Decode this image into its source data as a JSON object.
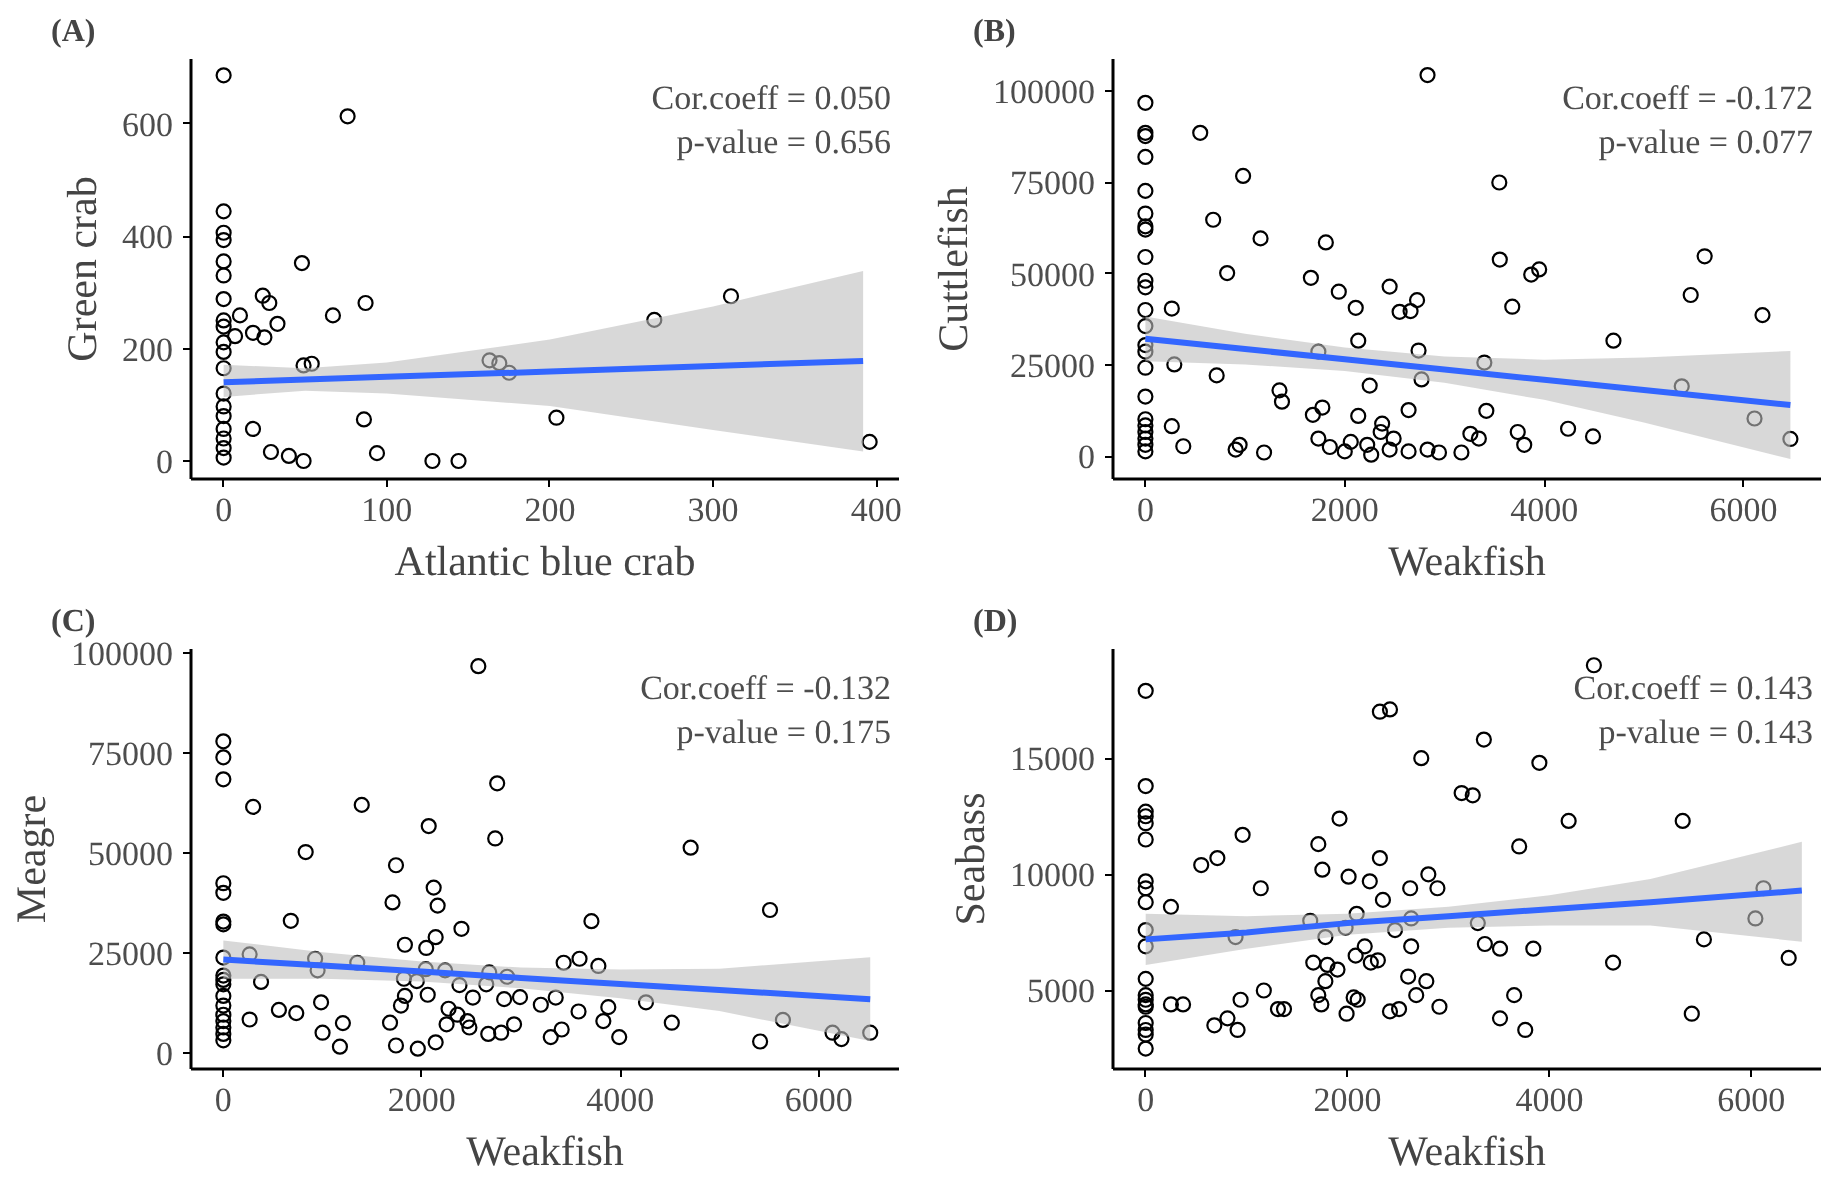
{
  "chart_data": [
    {
      "type": "scatter",
      "title": "(A)",
      "xlabel": "Atlantic blue crab",
      "ylabel": "Green crab",
      "annotations": [
        "Cor.coeff = 0.050",
        "p-value = 0.656"
      ],
      "xlim": [
        -20,
        414
      ],
      "ylim": [
        -32,
        715
      ],
      "xticks": [
        0,
        100,
        200,
        300,
        400
      ],
      "yticks": [
        0,
        200,
        400,
        600
      ],
      "grid": false,
      "series": [
        {
          "marker": "circle",
          "color": "#000000",
          "x": [
            0,
            76,
            0,
            0,
            0,
            0,
            0,
            0,
            0,
            0,
            0,
            0,
            0,
            0,
            0,
            0,
            0,
            0,
            0,
            0,
            48,
            10,
            18,
            24,
            28,
            25,
            33,
            7,
            67,
            87,
            49,
            54,
            163,
            169,
            175,
            264,
            311,
            204,
            86,
            18,
            29,
            40,
            49,
            94,
            128,
            144,
            396
          ],
          "values": [
            686,
            613,
            444,
            406,
            393,
            355,
            330,
            288,
            250,
            239,
            211,
            194,
            165,
            120,
            97,
            80,
            57,
            40,
            23,
            6,
            352,
            259,
            228,
            294,
            281,
            220,
            244,
            222,
            259,
            281,
            170,
            173,
            179,
            174,
            157,
            251,
            293,
            77,
            74,
            57,
            16,
            9,
            0,
            14,
            0,
            0,
            34
          ]
        },
        {
          "type": "line",
          "marker": "none",
          "color": "#3366ff",
          "x": [
            0,
            50,
            100,
            200,
            300,
            392
          ],
          "values": [
            140,
            145,
            150,
            159,
            169,
            178
          ],
          "lower": [
            114,
            125,
            120,
            98,
            55,
            17
          ],
          "upper": [
            171,
            165,
            175,
            216,
            275,
            338
          ]
        }
      ]
    },
    {
      "type": "scatter",
      "title": "(B)",
      "xlabel": "Weakfish",
      "ylabel": "Cuttlefish",
      "annotations": [
        "Cor.coeff = -0.172",
        "p-value = 0.077"
      ],
      "xlim": [
        -325,
        6777
      ],
      "ylim": [
        -6160,
        108800
      ],
      "xticks": [
        0,
        2000,
        4000,
        6000
      ],
      "yticks": [
        0,
        25000,
        50000,
        75000,
        100000
      ],
      "grid": false,
      "series": [
        {
          "marker": "circle",
          "color": "#000000",
          "x": [
            0,
            0,
            0,
            0,
            0,
            0,
            0,
            0,
            0,
            0,
            0,
            0,
            0,
            0,
            0,
            0,
            0,
            0,
            0,
            0,
            0,
            0,
            0,
            550,
            980,
            680,
            1155,
            820,
            265,
            290,
            715,
            265,
            380,
            2830,
            3550,
            1810,
            1660,
            1940,
            2110,
            2450,
            2550,
            2660,
            2725,
            2135,
            1735,
            2740,
            2770,
            2250,
            1345,
            1370,
            1775,
            1680,
            2135,
            2640,
            2375,
            2360,
            1735,
            1850,
            2000,
            2060,
            2225,
            2265,
            2450,
            2490,
            2640,
            2830,
            2945,
            3170,
            3260,
            3345,
            945,
            905,
            1190,
            3400,
            3420,
            3680,
            3555,
            3870,
            3950,
            3735,
            3800,
            4240,
            4490,
            4695,
            5380,
            5470,
            5610,
            6110,
            6190,
            6470
          ],
          "values": [
            96800,
            88600,
            87700,
            82000,
            72700,
            66500,
            63000,
            62100,
            54600,
            48100,
            46300,
            40100,
            35700,
            30500,
            28700,
            24300,
            16400,
            10200,
            8500,
            6700,
            4900,
            3200,
            1400,
            88600,
            76800,
            64800,
            59700,
            50200,
            40500,
            25200,
            22200,
            8300,
            2800,
            104400,
            75000,
            58600,
            48900,
            45100,
            40700,
            46500,
            39600,
            39800,
            42800,
            31700,
            28700,
            29000,
            21100,
            19400,
            18100,
            15000,
            13400,
            11400,
            11100,
            12700,
            9000,
            6700,
            4900,
            2600,
            1400,
            4000,
            3200,
            500,
            1900,
            4900,
            1400,
            1900,
            1100,
            1100,
            6200,
            4900,
            3200,
            1900,
            1100,
            25700,
            12500,
            41000,
            53900,
            49800,
            51200,
            6700,
            3200,
            7600,
            5500,
            31700,
            19200,
            44200,
            54800,
            10400,
            38700,
            4800
          ]
        },
        {
          "type": "line",
          "marker": "none",
          "color": "#3366ff",
          "x": [
            0,
            1000,
            2000,
            3000,
            4000,
            5000,
            6470
          ],
          "values": [
            32200,
            29400,
            26600,
            23800,
            21000,
            18200,
            14100
          ],
          "lower": [
            26100,
            25200,
            23400,
            20200,
            15500,
            9300,
            -700
          ],
          "upper": [
            38300,
            33600,
            29800,
            27400,
            26500,
            27100,
            28900
          ]
        }
      ]
    },
    {
      "type": "scatter",
      "title": "(C)",
      "xlabel": "Weakfish",
      "ylabel": "Meagre",
      "annotations": [
        "Cor.coeff = -0.132",
        "p-value = 0.175"
      ],
      "xlim": [
        -326,
        6810
      ],
      "ylim": [
        -3980,
        101100
      ],
      "xticks": [
        0,
        2000,
        4000,
        6000
      ],
      "yticks": [
        0,
        25000,
        50000,
        75000,
        100000
      ],
      "grid": false,
      "series": [
        {
          "marker": "circle",
          "color": "#000000",
          "x": [
            0,
            0,
            0,
            0,
            0,
            0,
            0,
            0,
            0,
            0,
            0,
            0,
            0,
            0,
            0,
            0,
            0,
            0,
            2570,
            2760,
            2740,
            300,
            1395,
            2070,
            830,
            4710,
            1740,
            2120,
            2160,
            1705,
            680,
            3710,
            5510,
            2400,
            2140,
            1830,
            2045,
            265,
            925,
            1350,
            950,
            380,
            1820,
            1950,
            2040,
            2235,
            2680,
            2860,
            2380,
            2650,
            3430,
            3590,
            3780,
            2515,
            2830,
            2990,
            3200,
            3350,
            4260,
            2060,
            1830,
            1790,
            985,
            560,
            735,
            265,
            2270,
            2360,
            2460,
            2250,
            2480,
            2670,
            2800,
            2930,
            3580,
            3880,
            3830,
            3410,
            3300,
            3990,
            4520,
            1205,
            1000,
            1175,
            1680,
            1740,
            1960,
            2140,
            5410,
            5640,
            6140,
            6230,
            6520
          ],
          "values": [
            78000,
            74000,
            68500,
            42500,
            40100,
            32900,
            32200,
            23900,
            19400,
            18300,
            17200,
            14300,
            11900,
            9600,
            8000,
            6400,
            4800,
            3200,
            96800,
            67500,
            53700,
            61600,
            62100,
            56800,
            50300,
            51400,
            47000,
            41400,
            36900,
            37700,
            33100,
            33000,
            35800,
            31100,
            29000,
            27100,
            26300,
            24700,
            23600,
            22600,
            20700,
            17800,
            18600,
            18000,
            21000,
            20700,
            20200,
            19100,
            17000,
            17200,
            22600,
            23600,
            21800,
            13900,
            13500,
            14000,
            12100,
            13900,
            12700,
            14600,
            14300,
            11900,
            12700,
            10800,
            10000,
            8400,
            11100,
            9600,
            8000,
            7200,
            6400,
            4800,
            5100,
            7200,
            10400,
            11500,
            8000,
            5900,
            4000,
            4000,
            7600,
            7500,
            5100,
            1600,
            7600,
            1900,
            1100,
            2700,
            2900,
            8300,
            5100,
            3500,
            5100
          ]
        },
        {
          "type": "line",
          "marker": "none",
          "color": "#3366ff",
          "x": [
            0,
            1000,
            2000,
            3000,
            4000,
            5000,
            6520
          ],
          "values": [
            23400,
            21900,
            20400,
            18800,
            17300,
            15800,
            13500
          ],
          "lower": [
            18600,
            18600,
            17900,
            16200,
            13700,
            10500,
            3000
          ],
          "upper": [
            28200,
            25200,
            22900,
            21400,
            20900,
            21100,
            24000
          ]
        }
      ]
    },
    {
      "type": "scatter",
      "title": "(D)",
      "xlabel": "Weakfish",
      "ylabel": "Seabass",
      "annotations": [
        "Cor.coeff = 0.143",
        "p-value = 0.143"
      ],
      "xlim": [
        -324,
        6690
      ],
      "ylim": [
        1620,
        19700
      ],
      "xticks": [
        0,
        2000,
        4000,
        6000
      ],
      "yticks": [
        5000,
        10000,
        15000
      ],
      "grid": false,
      "series": [
        {
          "marker": "circle",
          "color": "#000000",
          "x": [
            0,
            0,
            0,
            0,
            0,
            0,
            0,
            0,
            0,
            0,
            0,
            0,
            0,
            0,
            0,
            0,
            0,
            0,
            0,
            0,
            4440,
            2320,
            2420,
            3350,
            2730,
            3900,
            3130,
            3240,
            1920,
            4190,
            5320,
            960,
            1710,
            3700,
            2320,
            710,
            550,
            1750,
            2010,
            2800,
            2220,
            2890,
            2620,
            1140,
            2350,
            250,
            2090,
            6120,
            1630,
            2630,
            3290,
            6040,
            890,
            1780,
            1980,
            2470,
            2170,
            2630,
            3360,
            3510,
            3840,
            5530,
            2080,
            2230,
            2300,
            1660,
            1800,
            1900,
            4630,
            6370,
            2600,
            2780,
            1780,
            1170,
            940,
            1710,
            2060,
            2100,
            2680,
            1740,
            1990,
            2420,
            2510,
            2910,
            3650,
            1310,
            1370,
            250,
            370,
            810,
            680,
            910,
            3510,
            3760,
            5410
          ],
          "values": [
            17900,
            13800,
            12700,
            12500,
            12200,
            11500,
            9700,
            9400,
            8800,
            7600,
            6900,
            5500,
            4800,
            4600,
            4400,
            4300,
            3600,
            3300,
            3100,
            2500,
            19000,
            17000,
            17100,
            15800,
            15000,
            14800,
            13500,
            13400,
            12400,
            12300,
            12300,
            11700,
            11300,
            11200,
            10700,
            10700,
            10400,
            10200,
            9900,
            10000,
            9700,
            9400,
            9400,
            9400,
            8900,
            8600,
            8300,
            9400,
            8000,
            8100,
            7900,
            8100,
            7300,
            7300,
            7700,
            7600,
            6900,
            6900,
            7000,
            6800,
            6800,
            7200,
            6500,
            6200,
            6300,
            6200,
            6100,
            5900,
            6200,
            6400,
            5600,
            5400,
            5400,
            5000,
            4600,
            4800,
            4700,
            4600,
            4800,
            4400,
            4000,
            4100,
            4200,
            4300,
            4800,
            4200,
            4200,
            4400,
            4400,
            3800,
            3500,
            3300,
            3800,
            3300,
            4000
          ]
        },
        {
          "type": "line",
          "marker": "none",
          "color": "#3366ff",
          "x": [
            0,
            1000,
            2000,
            3000,
            4000,
            5000,
            6500
          ],
          "values": [
            7200,
            7500,
            7900,
            8200,
            8500,
            8800,
            9300
          ],
          "lower": [
            6100,
            6800,
            7400,
            7700,
            7800,
            7800,
            7100
          ],
          "upper": [
            8300,
            8200,
            8300,
            8600,
            9100,
            9800,
            11400
          ]
        }
      ]
    }
  ]
}
